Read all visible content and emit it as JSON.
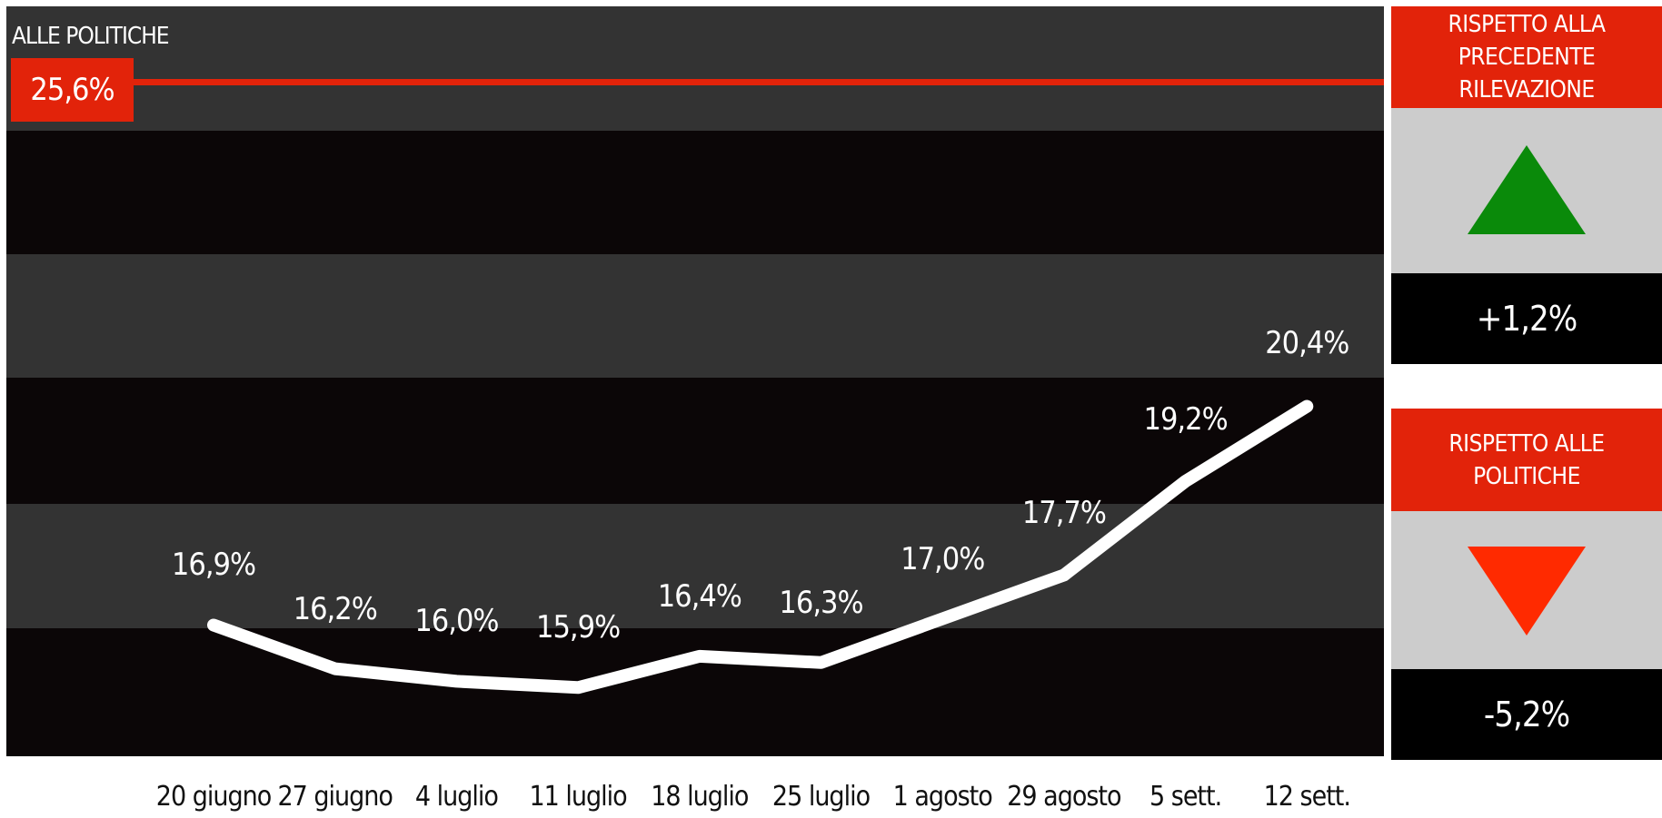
{
  "reference": {
    "label": "ALLE POLITICHE",
    "value_text": "25,6%",
    "value": 25.6,
    "color": "#e2230a"
  },
  "chart_data": {
    "type": "line",
    "categories": [
      "20 giugno",
      "27 giugno",
      "4 luglio",
      "11 luglio",
      "18 luglio",
      "25 luglio",
      "1 agosto",
      "29 agosto",
      "5 sett.",
      "12 sett."
    ],
    "series": [
      {
        "values": [
          16.9,
          16.2,
          16.0,
          15.9,
          16.4,
          16.3,
          17.0,
          17.7,
          19.2,
          20.4
        ]
      }
    ],
    "labels": [
      "16,9%",
      "16,2%",
      "16,0%",
      "15,9%",
      "16,4%",
      "16,3%",
      "17,0%",
      "17,7%",
      "19,2%",
      "20,4%"
    ],
    "ylim": [
      14.8,
      26.8
    ],
    "reference_line": 25.6,
    "line_color": "#ffffff",
    "grid": "alternating horizontal bands"
  },
  "panels": [
    {
      "title": "RISPETTO ALLA PRECEDENTE RILEVAZIONE",
      "icon": "triangle-up-icon",
      "icon_color": "#0a8a0a",
      "value": "+1,2%"
    },
    {
      "title": "RISPETTO ALLE POLITICHE",
      "icon": "triangle-down-icon",
      "icon_color": "#ff2a00",
      "value": "-5,2%"
    }
  ]
}
